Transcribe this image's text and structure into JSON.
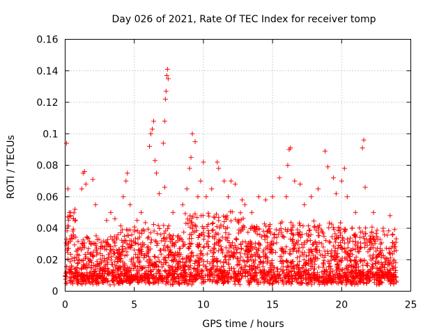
{
  "chart_data": {
    "type": "scatter",
    "title": "Day 026 of 2021, Rate Of TEC Index for receiver tomp",
    "xlabel": "GPS time / hours",
    "ylabel": "ROTI / TECUs",
    "xlim": [
      0,
      25
    ],
    "ylim": [
      0,
      0.16
    ],
    "xticks": [
      0,
      5,
      10,
      15,
      20,
      25
    ],
    "yticks": [
      0,
      0.02,
      0.04,
      0.06,
      0.08,
      0.1,
      0.12,
      0.14,
      0.16
    ],
    "xtick_labels": [
      "0",
      "5",
      "10",
      "15",
      "20",
      "25"
    ],
    "ytick_labels": [
      "0",
      "0.02",
      "0.04",
      "0.06",
      "0.08",
      "0.1",
      "0.12",
      "0.14",
      "0.16"
    ],
    "grid": true,
    "marker": "plus",
    "color": "#ff0000",
    "series": [
      {
        "name": "ROTI",
        "note": "dense cloud of ~0.005-0.04 TECU/s over 0-24 h; listed points are the visible outliers/peaks",
        "points": [
          [
            0.1,
            0.094
          ],
          [
            0.2,
            0.065
          ],
          [
            0.3,
            0.05
          ],
          [
            0.4,
            0.048
          ],
          [
            0.6,
            0.046
          ],
          [
            1.2,
            0.065
          ],
          [
            1.3,
            0.075
          ],
          [
            1.4,
            0.076
          ],
          [
            1.5,
            0.068
          ],
          [
            2.0,
            0.071
          ],
          [
            2.2,
            0.055
          ],
          [
            3.0,
            0.045
          ],
          [
            3.3,
            0.05
          ],
          [
            3.6,
            0.046
          ],
          [
            4.2,
            0.06
          ],
          [
            4.4,
            0.07
          ],
          [
            4.5,
            0.075
          ],
          [
            4.7,
            0.055
          ],
          [
            5.2,
            0.045
          ],
          [
            5.5,
            0.05
          ],
          [
            6.1,
            0.092
          ],
          [
            6.2,
            0.1
          ],
          [
            6.3,
            0.103
          ],
          [
            6.4,
            0.108
          ],
          [
            6.5,
            0.083
          ],
          [
            6.6,
            0.075
          ],
          [
            6.8,
            0.062
          ],
          [
            7.1,
            0.094
          ],
          [
            7.2,
            0.108
          ],
          [
            7.25,
            0.122
          ],
          [
            7.3,
            0.127
          ],
          [
            7.35,
            0.137
          ],
          [
            7.4,
            0.141
          ],
          [
            7.45,
            0.135
          ],
          [
            7.2,
            0.066
          ],
          [
            7.8,
            0.05
          ],
          [
            8.5,
            0.055
          ],
          [
            8.8,
            0.065
          ],
          [
            9.0,
            0.078
          ],
          [
            9.1,
            0.085
          ],
          [
            9.2,
            0.1
          ],
          [
            9.4,
            0.095
          ],
          [
            9.6,
            0.06
          ],
          [
            9.8,
            0.07
          ],
          [
            10.0,
            0.082
          ],
          [
            10.2,
            0.06
          ],
          [
            10.6,
            0.065
          ],
          [
            11.0,
            0.082
          ],
          [
            11.1,
            0.078
          ],
          [
            11.5,
            0.07
          ],
          [
            11.8,
            0.06
          ],
          [
            12.0,
            0.07
          ],
          [
            12.3,
            0.068
          ],
          [
            12.8,
            0.058
          ],
          [
            13.0,
            0.055
          ],
          [
            13.5,
            0.05
          ],
          [
            14.0,
            0.06
          ],
          [
            14.5,
            0.058
          ],
          [
            15.0,
            0.06
          ],
          [
            15.5,
            0.072
          ],
          [
            16.0,
            0.06
          ],
          [
            16.2,
            0.09
          ],
          [
            16.3,
            0.091
          ],
          [
            16.1,
            0.08
          ],
          [
            16.6,
            0.07
          ],
          [
            17.0,
            0.068
          ],
          [
            17.3,
            0.055
          ],
          [
            17.8,
            0.06
          ],
          [
            18.3,
            0.065
          ],
          [
            18.8,
            0.089
          ],
          [
            19.0,
            0.079
          ],
          [
            19.4,
            0.072
          ],
          [
            19.6,
            0.062
          ],
          [
            20.0,
            0.07
          ],
          [
            20.2,
            0.078
          ],
          [
            20.4,
            0.06
          ],
          [
            21.0,
            0.05
          ],
          [
            21.5,
            0.091
          ],
          [
            21.6,
            0.096
          ],
          [
            21.7,
            0.066
          ],
          [
            22.3,
            0.05
          ],
          [
            23.0,
            0.04
          ],
          [
            23.5,
            0.048
          ],
          [
            23.8,
            0.03
          ]
        ]
      }
    ]
  }
}
